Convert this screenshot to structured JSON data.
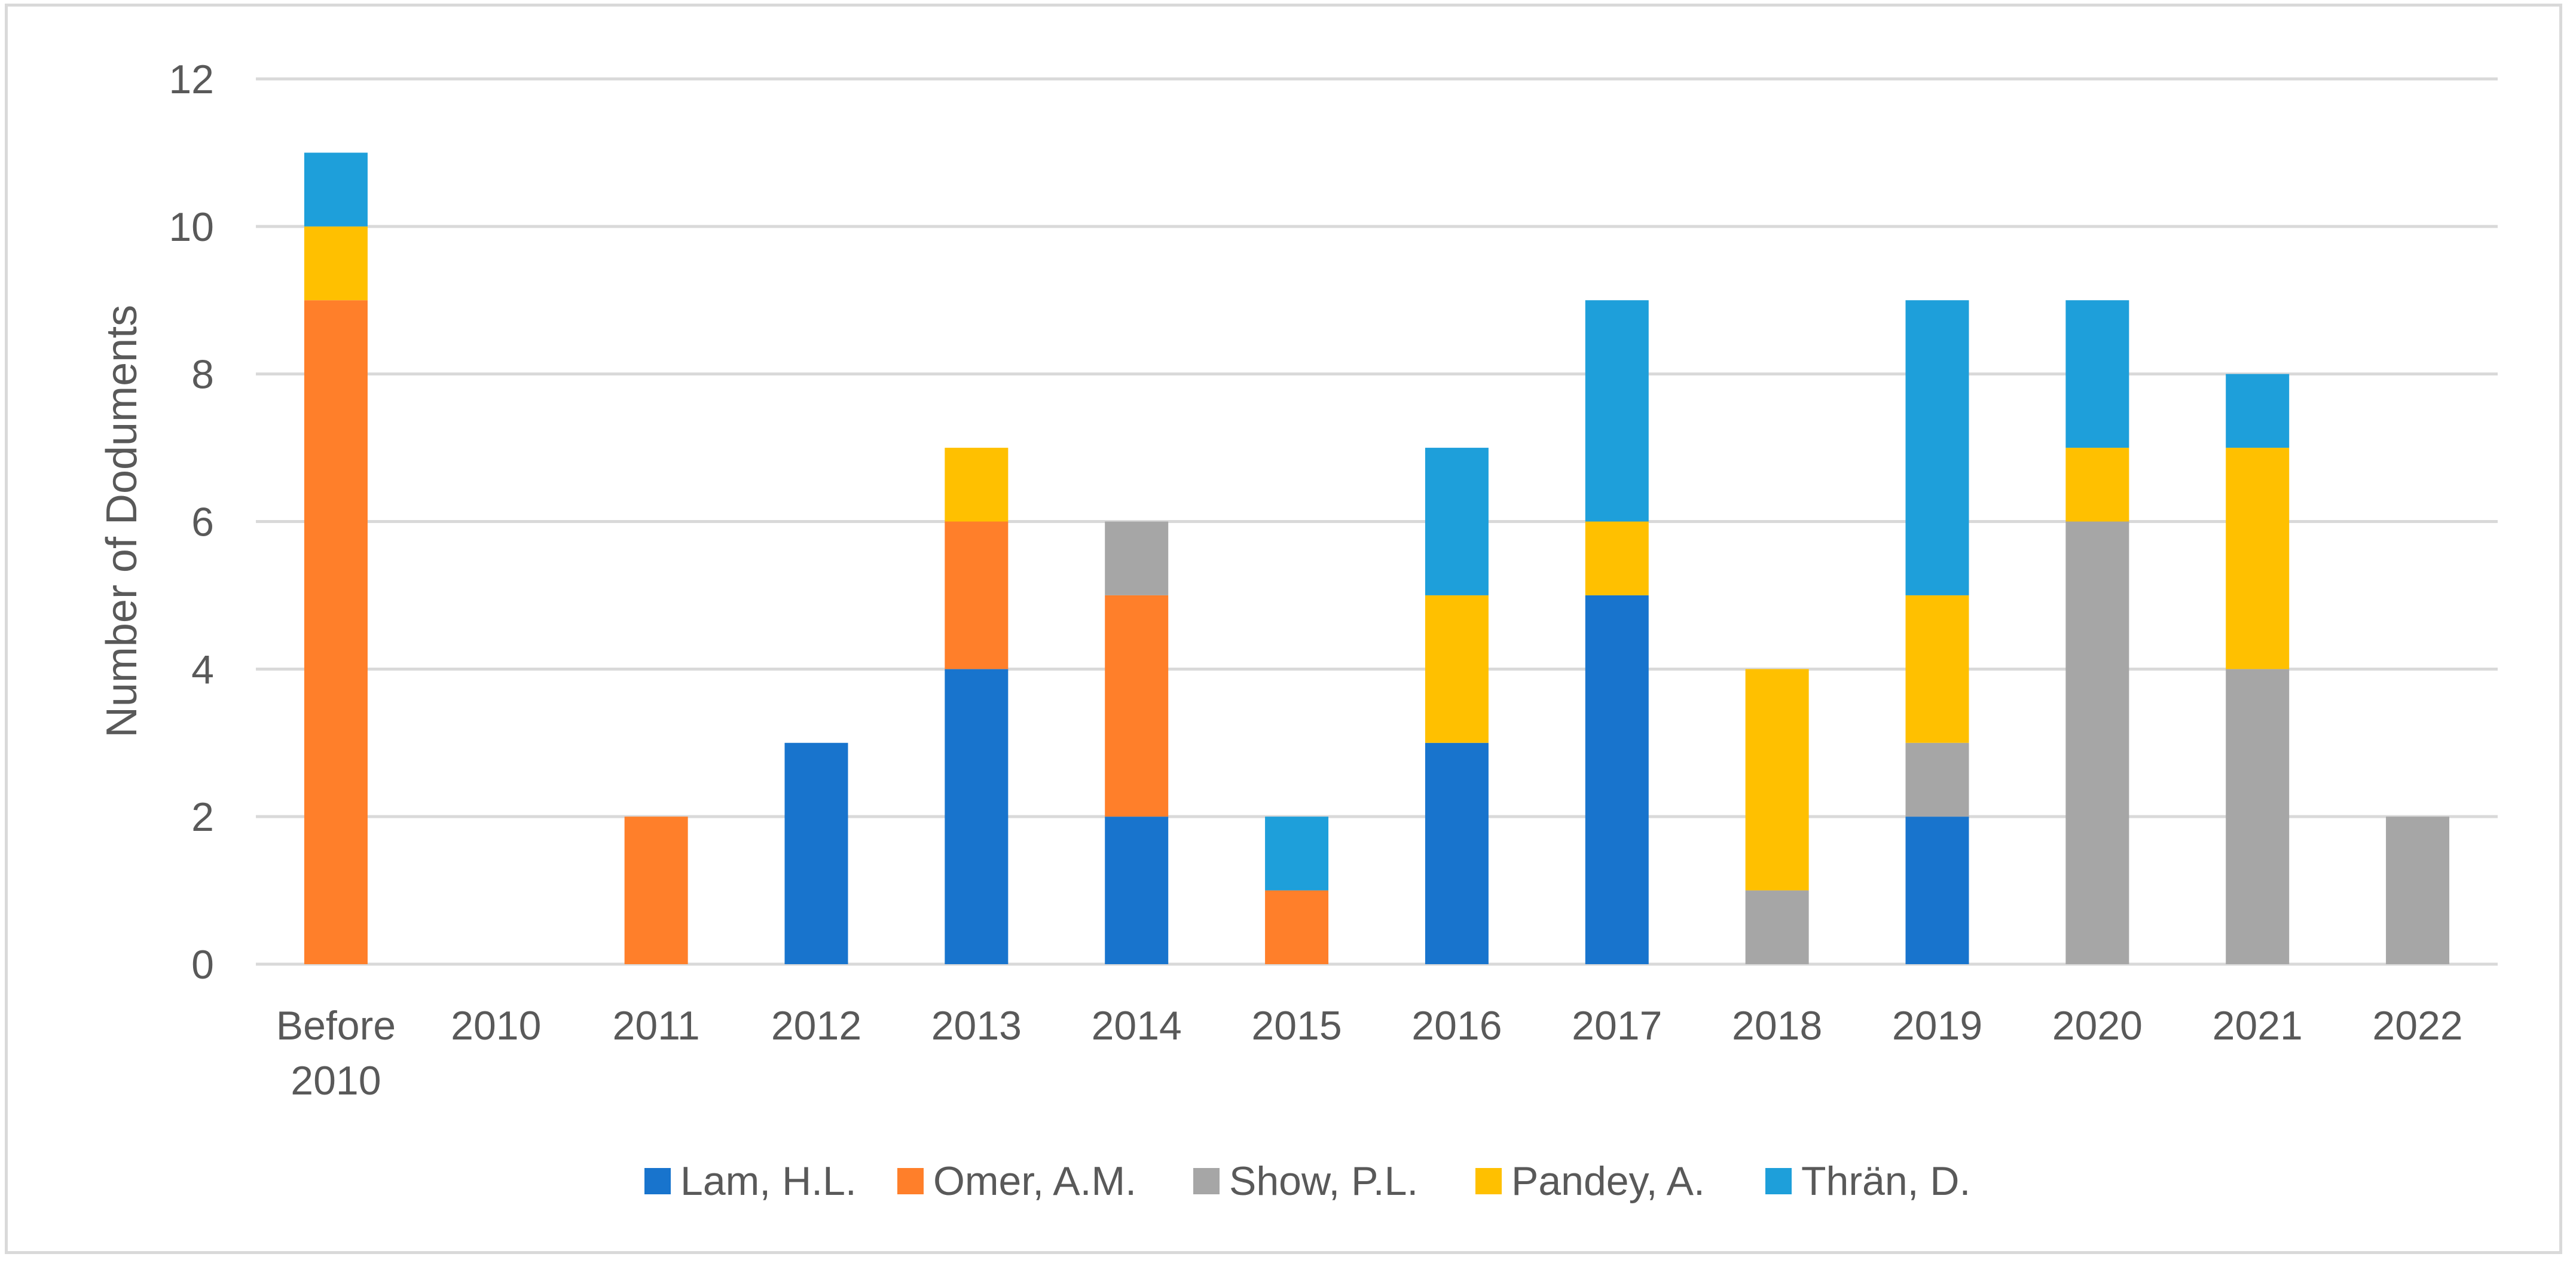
{
  "chart_data": {
    "type": "bar",
    "stacked": true,
    "categories": [
      "Before 2010",
      "2010",
      "2011",
      "2012",
      "2013",
      "2014",
      "2015",
      "2016",
      "2017",
      "2018",
      "2019",
      "2020",
      "2021",
      "2022"
    ],
    "series": [
      {
        "name": "Lam, H.L.",
        "color": "#1874CD",
        "values": [
          0,
          0,
          0,
          3,
          4,
          2,
          0,
          3,
          5,
          0,
          2,
          0,
          0,
          0
        ]
      },
      {
        "name": "Omer, A.M.",
        "color": "#FF7F2A",
        "values": [
          9,
          0,
          2,
          0,
          2,
          3,
          1,
          0,
          0,
          0,
          0,
          0,
          0,
          0
        ]
      },
      {
        "name": "Show, P.L.",
        "color": "#A6A6A6",
        "values": [
          0,
          0,
          0,
          0,
          0,
          1,
          0,
          0,
          0,
          1,
          1,
          6,
          4,
          2
        ]
      },
      {
        "name": "Pandey, A.",
        "color": "#FFC000",
        "values": [
          1,
          0,
          0,
          0,
          1,
          0,
          0,
          2,
          1,
          3,
          2,
          1,
          3,
          0
        ]
      },
      {
        "name": "Thrän, D.",
        "color": "#1E9FDA",
        "values": [
          1,
          0,
          0,
          0,
          0,
          0,
          1,
          2,
          3,
          0,
          4,
          2,
          1,
          0
        ]
      }
    ],
    "ylabel": "Number of Dodu‌ments",
    "ylim": [
      0,
      12
    ],
    "yticks": [
      0,
      2,
      4,
      6,
      8,
      10,
      12
    ],
    "grid": true,
    "legend": "bottom"
  }
}
